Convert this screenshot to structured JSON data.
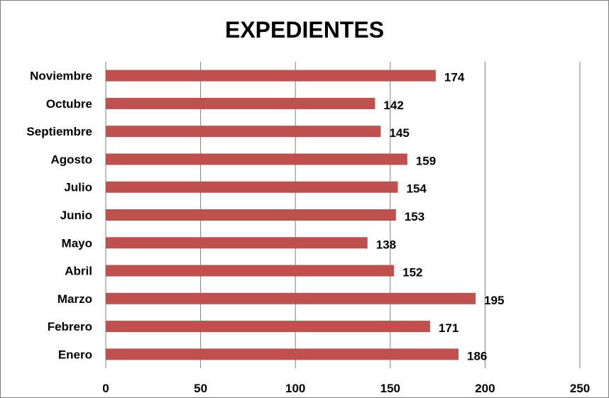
{
  "chart_data": {
    "type": "bar",
    "orientation": "horizontal",
    "title": "EXPEDIENTES",
    "xlabel": "",
    "ylabel": "",
    "categories": [
      "Enero",
      "Febrero",
      "Marzo",
      "Abril",
      "Mayo",
      "Junio",
      "Julio",
      "Agosto",
      "Septiembre",
      "Octubre",
      "Noviembre"
    ],
    "values": [
      186,
      171,
      195,
      152,
      138,
      153,
      154,
      159,
      145,
      142,
      174
    ],
    "xlim": [
      0,
      250
    ],
    "xticks": [
      0,
      50,
      100,
      150,
      200,
      250
    ],
    "grid": "vertical",
    "legend": "none",
    "data_labels": true,
    "colors": {
      "bar": "#c0504d",
      "grid": "#7f7f7f",
      "text": "#000000"
    }
  }
}
